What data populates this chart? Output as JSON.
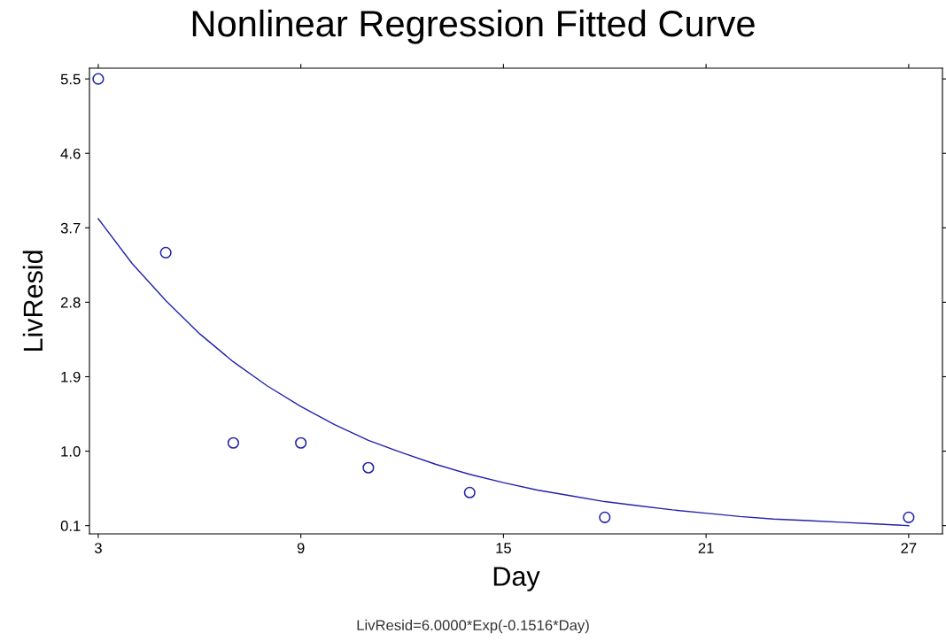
{
  "chart_data": {
    "type": "scatter",
    "title": "Nonlinear Regression Fitted Curve",
    "xlabel": "Day",
    "ylabel": "LivResid",
    "annotations": [
      "LivResid=6.0000*Exp(-0.1516*Day)"
    ],
    "series": [
      {
        "type": "scatter",
        "color": "#2222aa",
        "marker": "circle",
        "x": [
          3,
          5,
          7,
          9,
          11,
          14,
          18,
          27
        ],
        "values": [
          5.5,
          3.4,
          1.1,
          1.1,
          0.8,
          0.5,
          0.2,
          0.2
        ]
      },
      {
        "type": "line",
        "color": "#2222aa",
        "x": [
          3,
          4,
          5,
          6,
          7,
          8,
          9,
          10,
          11,
          12,
          13,
          14,
          15,
          16,
          17,
          18,
          19,
          20,
          21,
          22,
          23,
          24,
          25,
          26,
          27
        ],
        "values": [
          3.81,
          3.27,
          2.82,
          2.42,
          2.08,
          1.79,
          1.54,
          1.32,
          1.13,
          0.98,
          0.84,
          0.72,
          0.62,
          0.53,
          0.46,
          0.39,
          0.34,
          0.29,
          0.25,
          0.21,
          0.18,
          0.16,
          0.14,
          0.12,
          0.1
        ]
      }
    ],
    "xlim": [
      2.74,
      28.0
    ],
    "ylim": [
      0.0,
      5.63
    ],
    "xticks": [
      3,
      9,
      15,
      21,
      27
    ],
    "yticks": [
      0.1,
      {
        "value": 1.0,
        "label": "1.0"
      },
      1.9,
      2.8,
      3.7,
      4.6,
      5.5
    ],
    "grid": false,
    "legend": false
  }
}
